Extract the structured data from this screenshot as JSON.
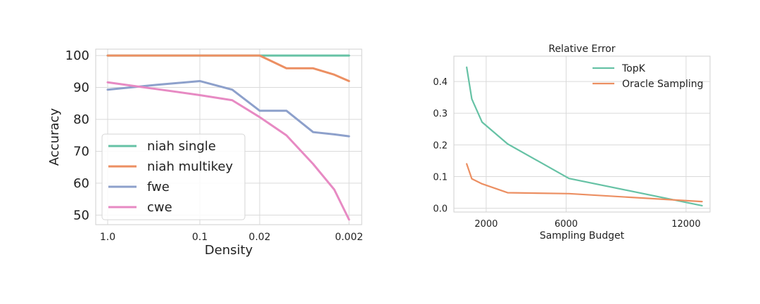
{
  "colors": {
    "green": "#66c2a5",
    "orange": "#ec8f62",
    "blue": "#8da0cb",
    "pink": "#e78ac3"
  },
  "chart_data": [
    {
      "type": "line",
      "title": "",
      "xlabel": "Density",
      "ylabel": "Accuracy",
      "x_tick_labels": [
        "1.0",
        "0.1",
        "0.02",
        "0.002"
      ],
      "y_ticks": [
        100,
        90,
        80,
        70,
        60,
        50
      ],
      "ylim": [
        47,
        102
      ],
      "x": [
        1.0,
        0.3,
        0.1,
        0.05,
        0.02,
        0.01,
        0.005,
        0.003,
        0.002
      ],
      "grid": true,
      "legend_position": "lower-left",
      "series": [
        {
          "name": "niah single",
          "color": "#66c2a5",
          "values": [
            100,
            100,
            100,
            100,
            100,
            100,
            100,
            100,
            100
          ]
        },
        {
          "name": "niah multikey",
          "color": "#ec8f62",
          "values": [
            100,
            100,
            100,
            100,
            100,
            96,
            96,
            94,
            92
          ]
        },
        {
          "name": "fwe",
          "color": "#8da0cb",
          "values": [
            89.3,
            90.8,
            92.0,
            89.3,
            82.7,
            82.7,
            76.0,
            75.3,
            74.7
          ]
        },
        {
          "name": "cwe",
          "color": "#e78ac3",
          "values": [
            91.6,
            89.5,
            87.6,
            86.0,
            80.7,
            75.0,
            66.0,
            58.0,
            48.6
          ]
        }
      ]
    },
    {
      "type": "line",
      "title": "Relative Error",
      "xlabel": "Sampling Budget",
      "ylabel": "",
      "x_ticks": [
        2000,
        6000,
        12000
      ],
      "y_ticks": [
        0.0,
        0.1,
        0.2,
        0.3,
        0.4
      ],
      "xlim": [
        384,
        13200
      ],
      "ylim": [
        -0.012,
        0.48
      ],
      "grid": true,
      "legend_position": "top-right",
      "series": [
        {
          "name": "TopK",
          "color": "#66c2a5",
          "x": [
            1024,
            1280,
            1792,
            3072,
            6144,
            12800
          ],
          "values": [
            0.445,
            0.345,
            0.272,
            0.203,
            0.094,
            0.008
          ]
        },
        {
          "name": "Oracle Sampling",
          "color": "#ec8f62",
          "x": [
            1024,
            1280,
            1792,
            3072,
            6144,
            12800
          ],
          "values": [
            0.14,
            0.093,
            0.077,
            0.049,
            0.046,
            0.021
          ]
        }
      ]
    }
  ]
}
